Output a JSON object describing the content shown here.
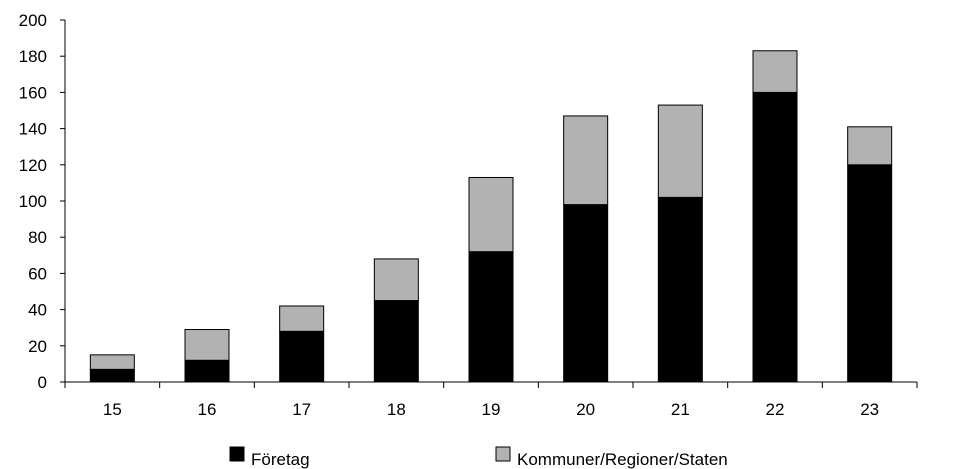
{
  "chart_data": {
    "type": "bar",
    "stacked": true,
    "categories": [
      "15",
      "16",
      "17",
      "18",
      "19",
      "20",
      "21",
      "22",
      "23"
    ],
    "series": [
      {
        "name": "Företag",
        "color": "#000000",
        "values": [
          7,
          12,
          28,
          45,
          72,
          98,
          102,
          160,
          120
        ]
      },
      {
        "name": "Kommuner/Regioner/Staten",
        "color": "#b2b2b2",
        "values": [
          8,
          17,
          14,
          23,
          41,
          49,
          51,
          23,
          21
        ]
      }
    ],
    "title": "",
    "xlabel": "",
    "ylabel": "",
    "ylim": [
      0,
      200
    ],
    "yticks": [
      0,
      20,
      40,
      60,
      80,
      100,
      120,
      140,
      160,
      180,
      200
    ],
    "grid": false,
    "legend_position": "bottom"
  }
}
